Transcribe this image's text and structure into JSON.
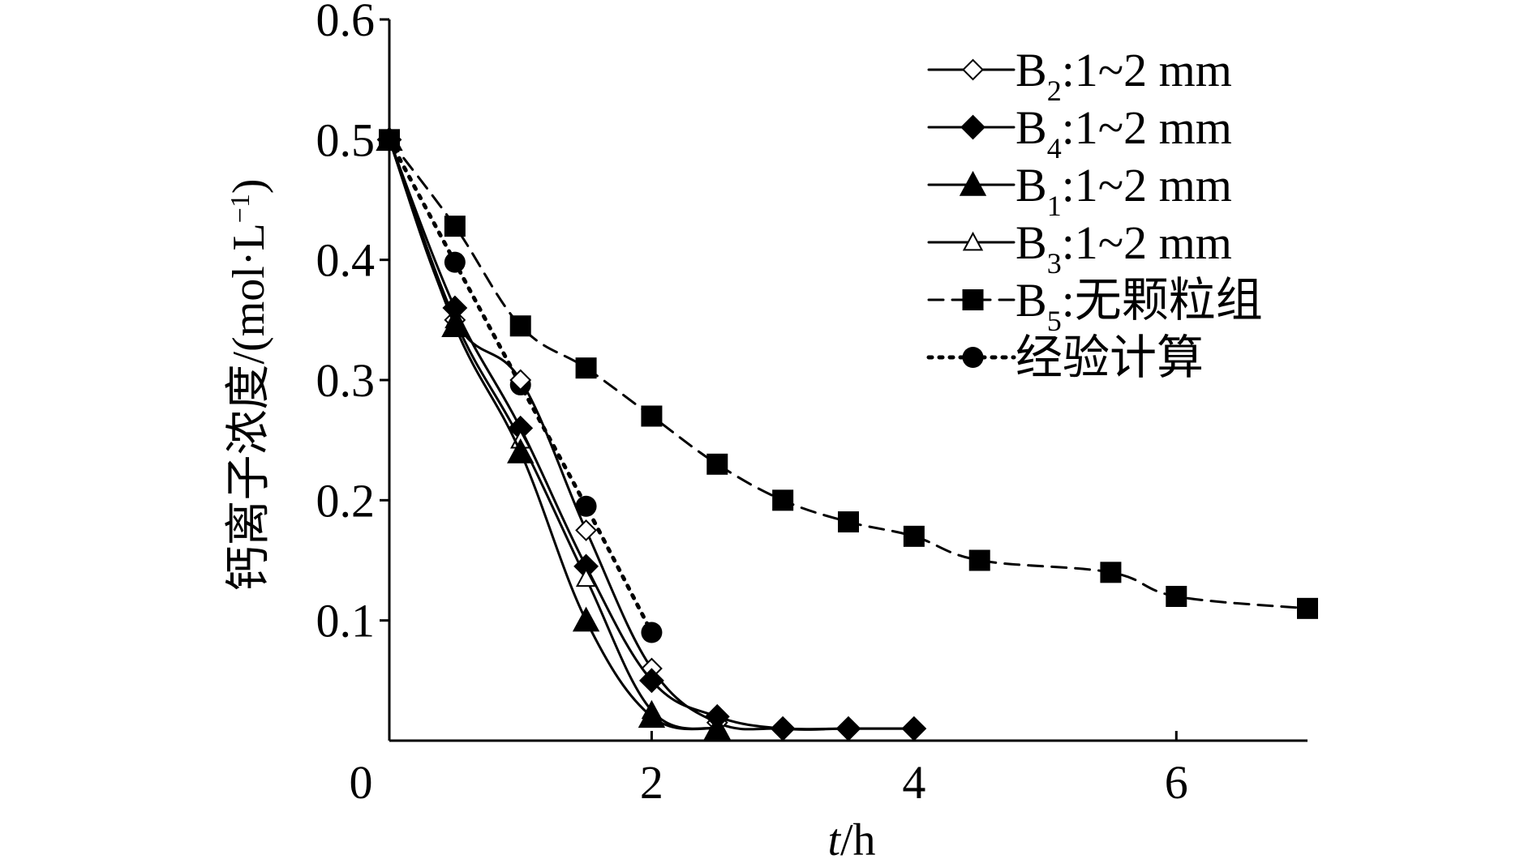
{
  "chart_data": {
    "type": "line",
    "xlabel_italic": "t",
    "xlabel_unit": "/h",
    "ylabel_text": "钙离子浓度/(mol·L",
    "ylabel_sup": "−1",
    "ylabel_close": ")",
    "xlim": [
      0,
      7
    ],
    "ylim": [
      0,
      0.6
    ],
    "x_ticks": [
      0,
      2,
      4,
      6
    ],
    "x_tick_labels": [
      "0",
      "2",
      "4",
      "6"
    ],
    "y_ticks": [
      0.1,
      0.2,
      0.3,
      0.4,
      0.5,
      0.6
    ],
    "y_tick_labels": [
      "0.1",
      "0.2",
      "0.3",
      "0.4",
      "0.5",
      "0.6"
    ],
    "grid": false,
    "legend_position": "top-right",
    "series": [
      {
        "key": "b2",
        "legend_main": "B",
        "legend_sub": "2",
        "legend_rest": ":1~2 mm",
        "marker": "open-diamond",
        "line": "solid",
        "x": [
          0,
          0.5,
          1,
          1.5,
          2,
          2.5,
          3,
          3.5,
          4
        ],
        "y": [
          0.5,
          0.35,
          0.3,
          0.175,
          0.06,
          0.015,
          0.01,
          0.01,
          0.01
        ]
      },
      {
        "key": "b4",
        "legend_main": "B",
        "legend_sub": "4",
        "legend_rest": ":1~2 mm",
        "marker": "filled-diamond",
        "line": "solid",
        "x": [
          0,
          0.5,
          1,
          1.5,
          2,
          2.5,
          3,
          3.5,
          4
        ],
        "y": [
          0.5,
          0.36,
          0.26,
          0.145,
          0.05,
          0.02,
          0.01,
          0.01,
          0.01
        ]
      },
      {
        "key": "b1",
        "legend_main": "B",
        "legend_sub": "1",
        "legend_rest": ":1~2 mm",
        "marker": "filled-triangle",
        "line": "solid",
        "x": [
          0,
          0.5,
          1,
          1.5,
          2,
          2.5
        ],
        "y": [
          0.5,
          0.345,
          0.24,
          0.1,
          0.02,
          0.01
        ]
      },
      {
        "key": "b3",
        "legend_main": "B",
        "legend_sub": "3",
        "legend_rest": ":1~2 mm",
        "marker": "open-triangle",
        "line": "solid",
        "x": [
          0,
          0.5,
          1,
          1.5,
          2,
          2.5
        ],
        "y": [
          0.5,
          0.35,
          0.25,
          0.135,
          0.025,
          0.01
        ]
      },
      {
        "key": "b5",
        "legend_main": "B",
        "legend_sub": "5",
        "legend_rest": ":无颗粒组",
        "marker": "filled-square",
        "line": "dashed",
        "x": [
          0,
          0.5,
          1,
          1.5,
          2,
          2.5,
          3,
          3.5,
          4,
          4.5,
          5.5,
          6,
          7
        ],
        "y": [
          0.5,
          0.428,
          0.345,
          0.31,
          0.27,
          0.23,
          0.2,
          0.182,
          0.17,
          0.15,
          0.14,
          0.12,
          0.11
        ]
      },
      {
        "key": "emp",
        "legend_main": "经验计算",
        "legend_sub": "",
        "legend_rest": "",
        "marker": "filled-circle",
        "line": "dotted",
        "x": [
          0,
          0.5,
          1,
          1.5,
          2
        ],
        "y": [
          0.5,
          0.398,
          0.296,
          0.195,
          0.09
        ]
      }
    ]
  }
}
